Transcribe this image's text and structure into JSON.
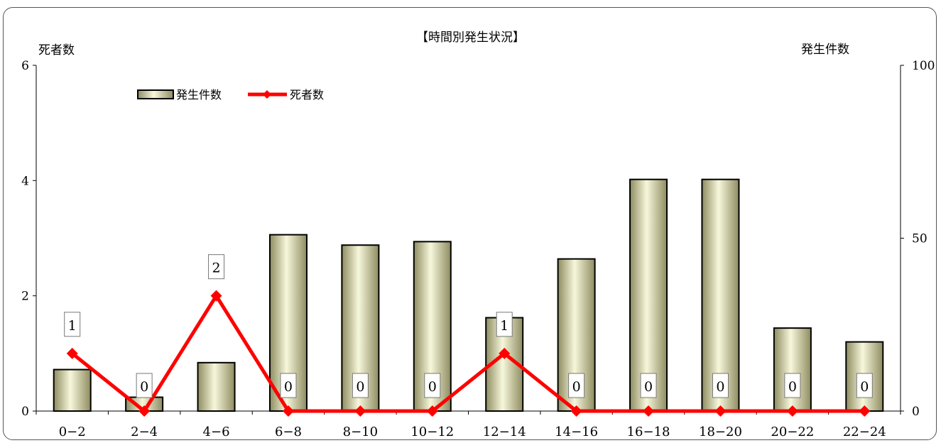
{
  "chart_data": {
    "type": "bar+line",
    "title": "【時間別発生状況】",
    "categories": [
      "0−2",
      "2−4",
      "4−6",
      "6−8",
      "8−10",
      "10−12",
      "12−14",
      "14−16",
      "16−18",
      "18−20",
      "20−22",
      "22−24"
    ],
    "series": [
      {
        "name": "発生件数",
        "type": "bar",
        "axis": "right",
        "values": [
          12,
          4,
          14,
          51,
          48,
          49,
          27,
          44,
          67,
          67,
          24,
          20
        ]
      },
      {
        "name": "死者数",
        "type": "line",
        "axis": "left",
        "values": [
          1,
          0,
          2,
          0,
          0,
          0,
          1,
          0,
          0,
          0,
          0,
          0
        ]
      }
    ],
    "y_left": {
      "label": "死者数",
      "ylim": [
        0,
        6
      ],
      "ticks": [
        "0",
        "2",
        "4",
        "6"
      ]
    },
    "y_right": {
      "label": "発生件数",
      "ylim": [
        0,
        100
      ],
      "ticks": [
        "0",
        "50",
        "100"
      ]
    },
    "legend": {
      "placement": "top-left",
      "entries": [
        "発生件数",
        "死者数"
      ]
    },
    "grid": false,
    "colors": {
      "bar_fill_light": "#f7f7dc",
      "bar_fill_dark": "#8e8c60",
      "line": "#ff0000"
    }
  }
}
